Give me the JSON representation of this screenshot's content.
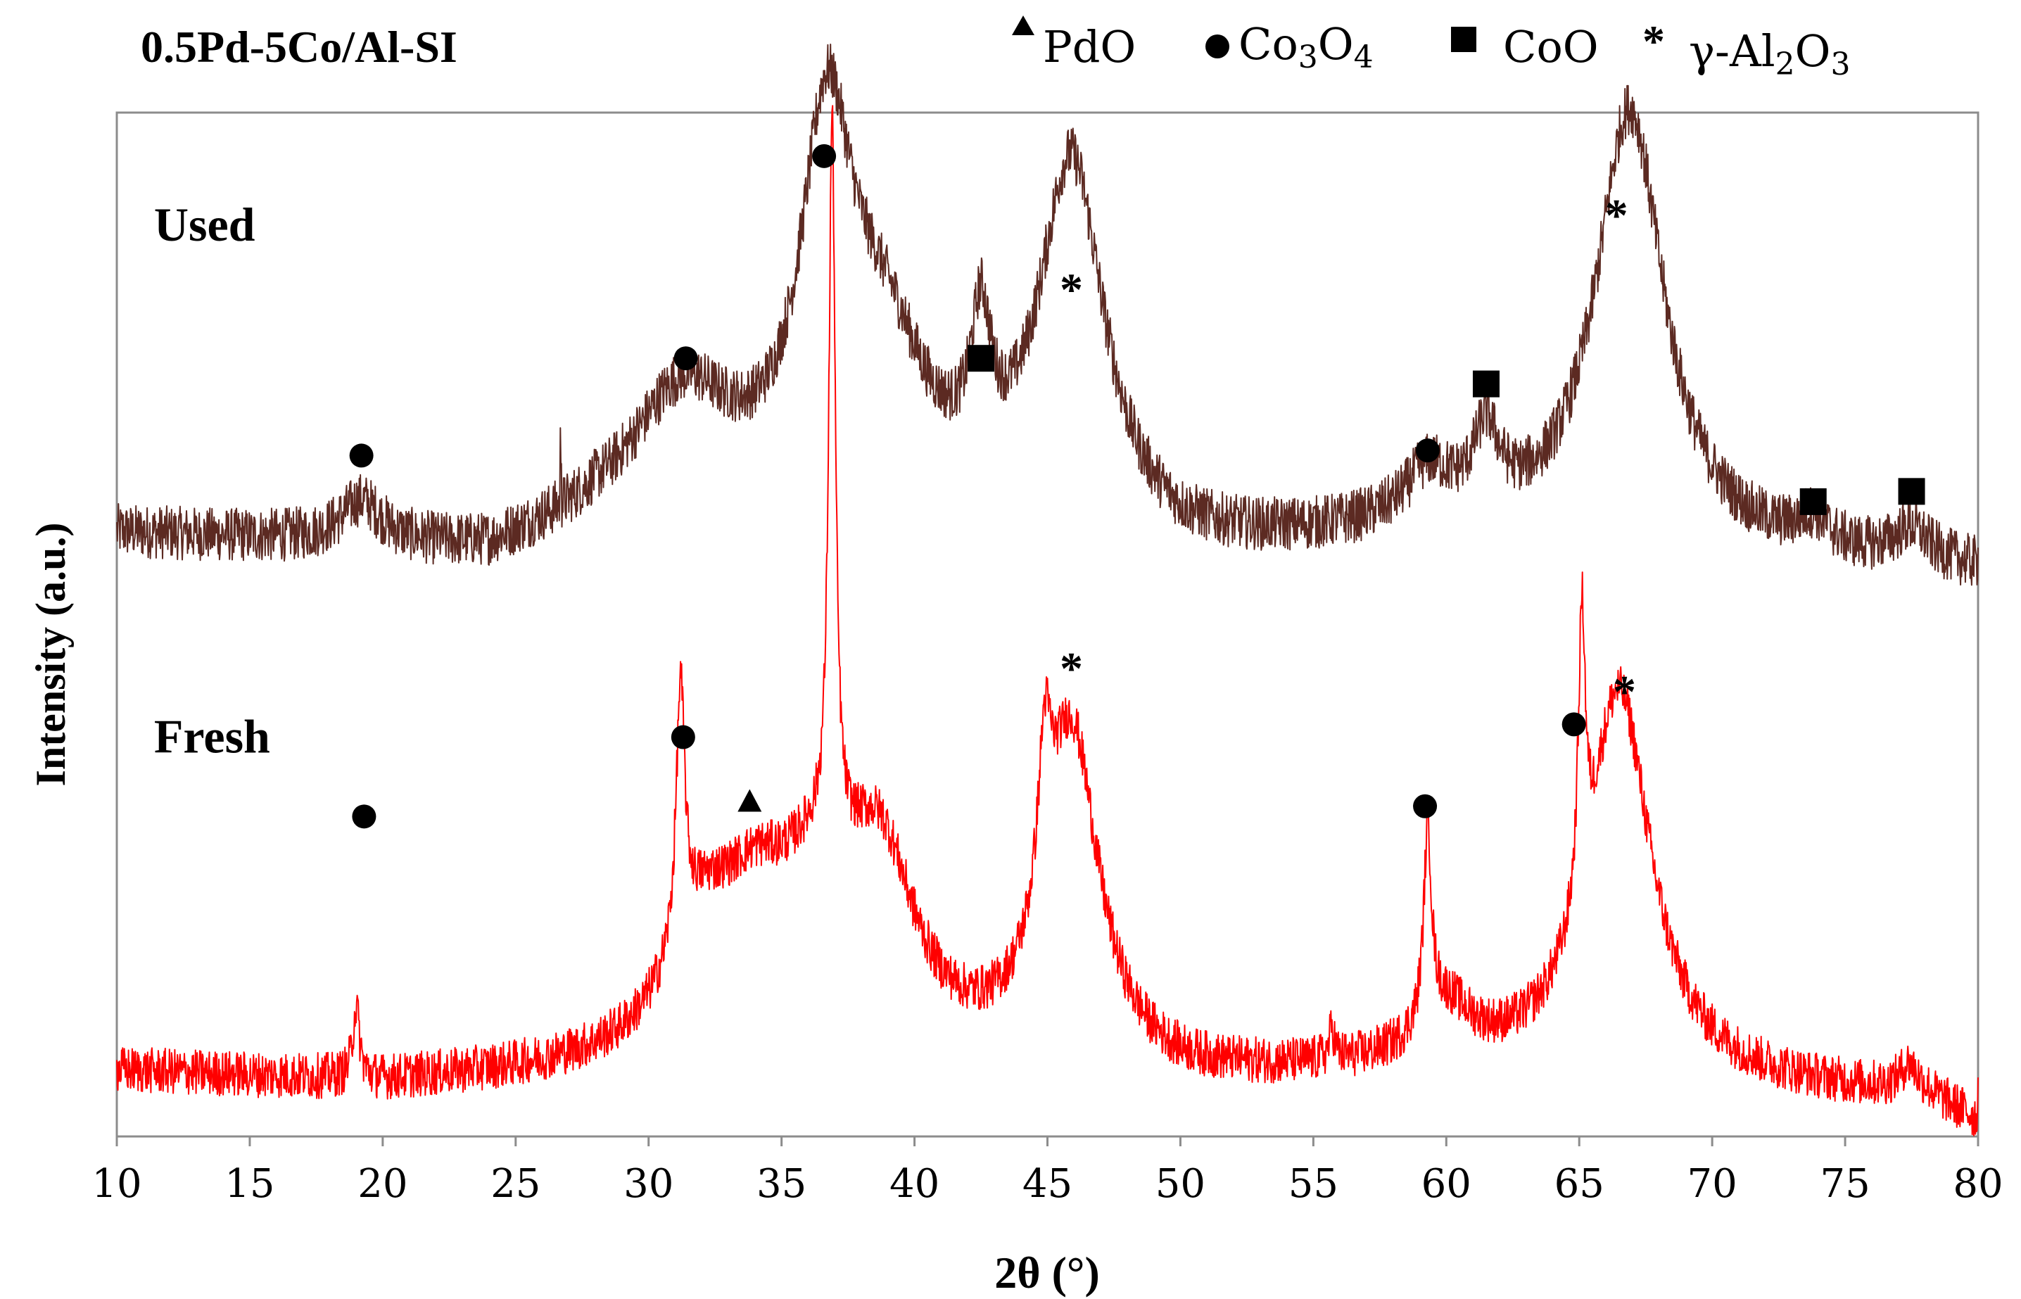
{
  "chart_data": {
    "type": "line",
    "title": "0.5Pd-5Co/Al-SI",
    "xlabel": "2θ (°)",
    "ylabel": "Intensity (a.u.)",
    "xlim": [
      10,
      80
    ],
    "xticks": [
      10,
      15,
      20,
      25,
      30,
      35,
      40,
      45,
      50,
      55,
      60,
      65,
      70,
      75,
      80
    ],
    "y_ticks_shown": false,
    "grid": false,
    "legend": {
      "placement": "top-right",
      "entries": [
        {
          "marker": "triangle",
          "label": "PdO"
        },
        {
          "marker": "circle",
          "label": "Co",
          "sub1": "3",
          "mid": "O",
          "sub2": "4"
        },
        {
          "marker": "square",
          "label": "CoO"
        },
        {
          "marker": "asterisk",
          "label": "γ-Al",
          "sub1": "2",
          "mid": "O",
          "sub2": "3"
        }
      ]
    },
    "series": [
      {
        "name": "Used",
        "color": "#5c2a22",
        "baseline": 23.5,
        "noise": 1.4,
        "drift": [
          [
            10,
            0
          ],
          [
            18,
            -0.5
          ],
          [
            24,
            -1.0
          ],
          [
            28,
            0
          ],
          [
            32,
            0
          ],
          [
            40,
            0
          ],
          [
            50,
            -1.0
          ],
          [
            60,
            0
          ],
          [
            70,
            -0.8
          ],
          [
            80,
            -1.5
          ]
        ],
        "peaks": [
          {
            "x": 19.2,
            "h": 1.6,
            "w": 0.9
          },
          {
            "x": 31.3,
            "h": 5.0,
            "w": 2.4
          },
          {
            "x": 36.7,
            "h": 14.0,
            "w": 1.2
          },
          {
            "x": 38.8,
            "h": 6.0,
            "w": 2.0
          },
          {
            "x": 42.5,
            "h": 5.5,
            "w": 0.45
          },
          {
            "x": 45.9,
            "h": 14.5,
            "w": 1.5
          },
          {
            "x": 59.3,
            "h": 1.8,
            "w": 1.0
          },
          {
            "x": 61.5,
            "h": 3.0,
            "w": 0.6
          },
          {
            "x": 66.9,
            "h": 17.0,
            "w": 1.55
          },
          {
            "x": 73.8,
            "h": 1.0,
            "w": 0.7
          },
          {
            "x": 77.5,
            "h": 1.2,
            "w": 0.8
          }
        ],
        "spikes": [
          [
            26.7,
            2.2
          ]
        ]
      },
      {
        "name": "Fresh",
        "color": "#ff0000",
        "baseline": 2.5,
        "noise": 1.2,
        "drift": [
          [
            10,
            0
          ],
          [
            20,
            -0.5
          ],
          [
            30,
            0
          ],
          [
            40,
            0
          ],
          [
            50,
            -0.5
          ],
          [
            60,
            0
          ],
          [
            70,
            -0.5
          ],
          [
            78,
            -1.0
          ],
          [
            80,
            -2.0
          ]
        ],
        "peaks": [
          {
            "x": 19.0,
            "h": 2.8,
            "w": 0.15
          },
          {
            "x": 31.2,
            "h": 10.0,
            "w": 0.2
          },
          {
            "x": 32.0,
            "h": 4.0,
            "w": 1.5
          },
          {
            "x": 34.0,
            "h": 4.5,
            "w": 1.8
          },
          {
            "x": 36.3,
            "h": 5.0,
            "w": 1.8
          },
          {
            "x": 36.9,
            "h": 28.0,
            "w": 0.15
          },
          {
            "x": 38.7,
            "h": 7.0,
            "w": 1.6
          },
          {
            "x": 44.9,
            "h": 6.0,
            "w": 0.3
          },
          {
            "x": 45.9,
            "h": 13.0,
            "w": 1.25
          },
          {
            "x": 55.7,
            "h": 1.2,
            "w": 0.12
          },
          {
            "x": 59.3,
            "h": 7.5,
            "w": 0.18
          },
          {
            "x": 60.0,
            "h": 2.0,
            "w": 1.2
          },
          {
            "x": 65.1,
            "h": 11.0,
            "w": 0.16
          },
          {
            "x": 66.5,
            "h": 15.0,
            "w": 1.45
          },
          {
            "x": 77.4,
            "h": 1.0,
            "w": 0.4
          }
        ],
        "spikes": []
      }
    ],
    "series_labels": [
      {
        "text": "Used",
        "anchor_x": 11.4,
        "anchor_y": 35.0
      },
      {
        "text": "Fresh",
        "anchor_x": 11.4,
        "anchor_y": 15.0
      }
    ],
    "annotations": [
      {
        "marker": "circle",
        "x": 19.2,
        "y": 26.6
      },
      {
        "marker": "circle",
        "x": 31.4,
        "y": 30.4
      },
      {
        "marker": "circle",
        "x": 36.6,
        "y": 38.3
      },
      {
        "marker": "square",
        "x": 42.5,
        "y": 30.4
      },
      {
        "marker": "asterisk",
        "x": 45.9,
        "y": 33.3
      },
      {
        "marker": "circle",
        "x": 59.3,
        "y": 26.8
      },
      {
        "marker": "square",
        "x": 61.5,
        "y": 29.4
      },
      {
        "marker": "square",
        "x": 73.8,
        "y": 24.8
      },
      {
        "marker": "square",
        "x": 77.5,
        "y": 25.2
      },
      {
        "marker": "asterisk",
        "x": 66.4,
        "y": 36.2
      },
      {
        "marker": "circle",
        "x": 19.3,
        "y": 12.5
      },
      {
        "marker": "circle",
        "x": 31.3,
        "y": 15.6
      },
      {
        "marker": "triangle",
        "x": 33.8,
        "y": 13.1
      },
      {
        "marker": "asterisk",
        "x": 45.9,
        "y": 18.5
      },
      {
        "marker": "circle",
        "x": 59.2,
        "y": 12.9
      },
      {
        "marker": "circle",
        "x": 64.8,
        "y": 16.1
      },
      {
        "marker": "asterisk",
        "x": 66.7,
        "y": 17.6
      }
    ],
    "ylim": [
      0,
      40
    ]
  }
}
